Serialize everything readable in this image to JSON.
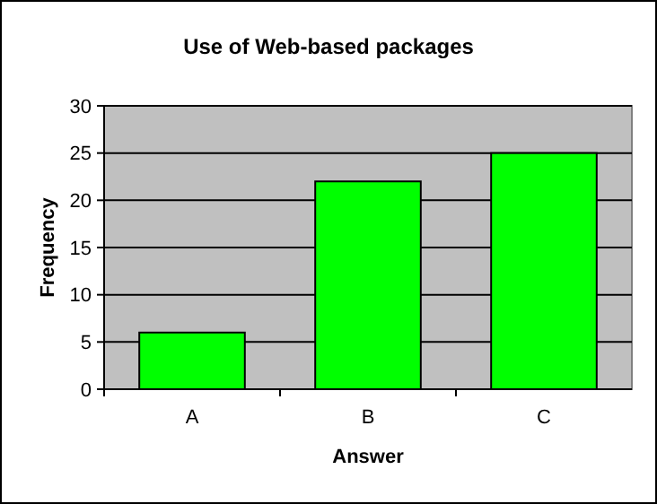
{
  "chart_data": {
    "type": "bar",
    "title": "Use of Web-based packages",
    "xlabel": "Answer",
    "ylabel": "Frequency",
    "categories": [
      "A",
      "B",
      "C"
    ],
    "values": [
      6,
      22,
      25
    ],
    "color": "#00ff00",
    "ylim": [
      0,
      30
    ],
    "yticks": [
      0,
      5,
      10,
      15,
      20,
      25,
      30
    ],
    "grid": "y"
  }
}
